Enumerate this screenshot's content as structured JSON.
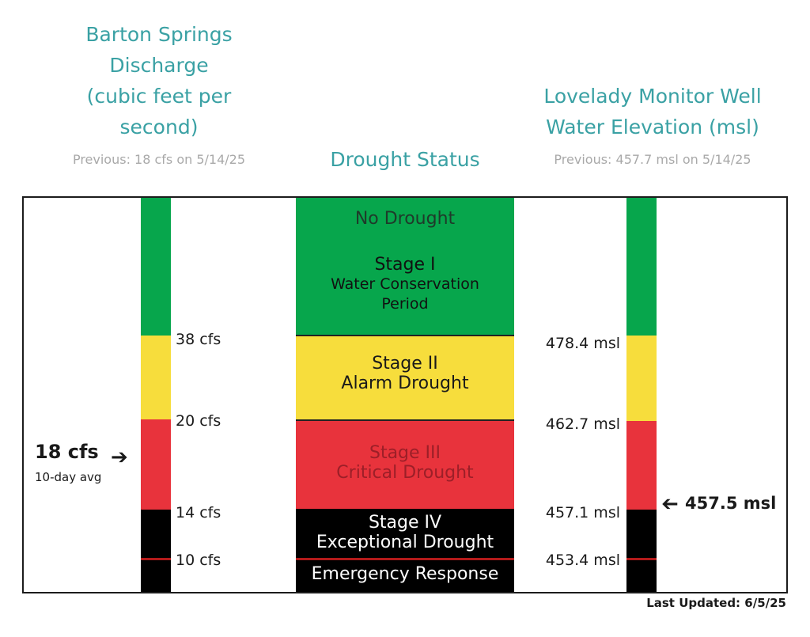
{
  "left_header": {
    "line1": "Barton Springs",
    "line2": "Discharge",
    "line3": "(cubic feet per",
    "line4": "second)",
    "previous": "Previous: 18 cfs on 5/14/25"
  },
  "center_header": {
    "title": "Drought Status"
  },
  "right_header": {
    "line1": "Lovelady Monitor Well",
    "line2": "Water Elevation (msl)",
    "previous": "Previous: 457.7 msl on 5/14/25"
  },
  "colors": {
    "no_drought": "#07a64c",
    "alarm": "#f7dd3c",
    "critical": "#e8333c",
    "exceptional": "#000000"
  },
  "discharge": {
    "thresholds": [
      "38 cfs",
      "20 cfs",
      "14 cfs",
      "10 cfs"
    ],
    "current_value": "18 cfs",
    "current_note": "10-day avg"
  },
  "stages": {
    "no_drought": "No Drought",
    "stage1_title": "Stage I",
    "stage1_sub1": "Water Conservation",
    "stage1_sub2": "Period",
    "stage2_title": "Stage II",
    "stage2_sub": "Alarm Drought",
    "stage3_title": "Stage III",
    "stage3_sub": "Critical Drought",
    "stage4_title": "Stage IV",
    "stage4_sub": "Exceptional Drought",
    "emergency": "Emergency Response"
  },
  "well": {
    "thresholds": [
      "478.4 msl",
      "462.7 msl",
      "457.1 msl",
      "453.4 msl"
    ],
    "current_value": "457.5 msl"
  },
  "footer": {
    "last_updated": "Last Updated: 6/5/25"
  }
}
